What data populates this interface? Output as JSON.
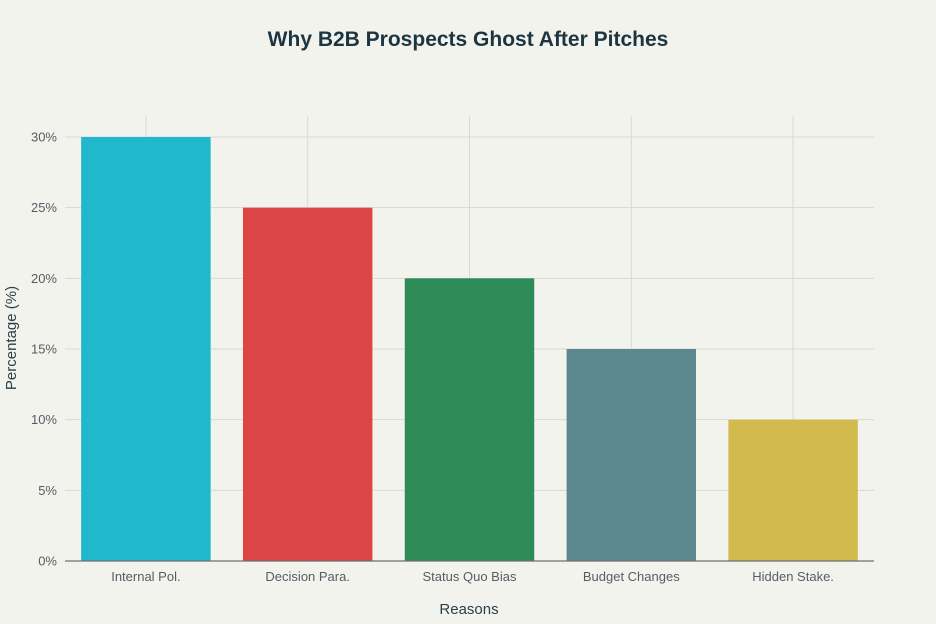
{
  "chart_data": {
    "type": "bar",
    "title": "Why B2B Prospects Ghost After Pitches",
    "xlabel": "Reasons",
    "ylabel": "Percentage (%)",
    "categories": [
      "Internal Pol.",
      "Decision Para.",
      "Status Quo Bias",
      "Budget Changes",
      "Hidden Stake."
    ],
    "values": [
      30,
      25,
      20,
      15,
      10
    ],
    "colors": [
      "#1fb8cd",
      "#db4545",
      "#2e8b57",
      "#5d878f",
      "#d2ba4c"
    ],
    "ylim": [
      0,
      30
    ],
    "yticks": [
      0,
      5,
      10,
      15,
      20,
      25,
      30
    ],
    "ytick_labels": [
      "0%",
      "5%",
      "10%",
      "15%",
      "20%",
      "25%",
      "30%"
    ],
    "grid": true,
    "legend": "none"
  }
}
